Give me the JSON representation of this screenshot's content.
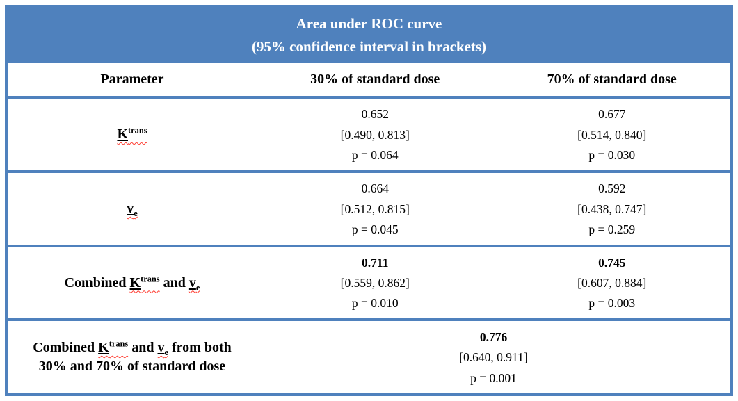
{
  "title": {
    "line1": "Area under ROC curve",
    "line2": "(95% confidence interval in brackets)"
  },
  "columns": {
    "parameter": "Parameter",
    "dose30": "30% of standard dose",
    "dose70": "70% of standard dose"
  },
  "symbols": {
    "ktrans_base": "K",
    "ktrans_sup": "trans",
    "ve_base": "v",
    "ve_sub": "e"
  },
  "rows": [
    {
      "cells": [
        {
          "auc": "0.652",
          "ci": "[0.490, 0.813]",
          "p": "p = 0.064"
        },
        {
          "auc": "0.677",
          "ci": "[0.514, 0.840]",
          "p": "p = 0.030"
        }
      ]
    },
    {
      "cells": [
        {
          "auc": "0.664",
          "ci": "[0.512, 0.815]",
          "p": "p = 0.045"
        },
        {
          "auc": "0.592",
          "ci": "[0.438, 0.747]",
          "p": "p = 0.259"
        }
      ]
    },
    {
      "label_prefix": "Combined ",
      "label_mid": " and ",
      "cells": [
        {
          "auc": "0.711",
          "ci": "[0.559, 0.862]",
          "p": "p = 0.010"
        },
        {
          "auc": "0.745",
          "ci": "[0.607, 0.884]",
          "p": "p = 0.003"
        }
      ]
    },
    {
      "label_prefix": "Combined ",
      "label_mid": " and ",
      "label_suffix": " from both",
      "label_line2": "30% and 70% of standard dose",
      "merged_cell": {
        "auc": "0.776",
        "ci": "[0.640, 0.911]",
        "p": "p = 0.001"
      }
    }
  ],
  "colors": {
    "band_blue": "#4f81bd",
    "border_blue": "#4f81bd",
    "squiggle_red": "#ff3b30",
    "title_text": "#ffffff",
    "body_text": "#000000"
  }
}
